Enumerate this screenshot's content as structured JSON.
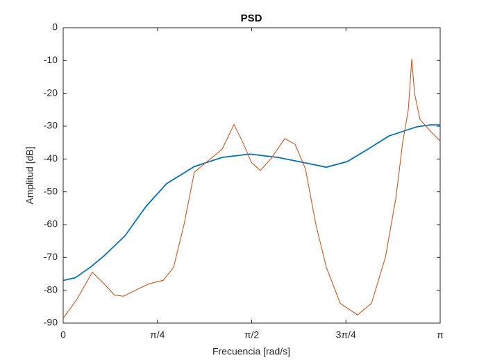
{
  "chart_data": {
    "type": "line",
    "title": "PSD",
    "x_label": "Frecuencia [rad/s]",
    "y_label": "Amplitud [dB]",
    "xlim": [
      0,
      3.14159
    ],
    "xticks": [
      0,
      {
        "value": 0.7854,
        "label": "π/4"
      },
      {
        "value": 1.5708,
        "label": "π/2"
      },
      {
        "value": 2.35619,
        "label": "3π/4"
      },
      {
        "value": 3.14159,
        "label": "π"
      }
    ],
    "ylim": [
      -90,
      0
    ],
    "yticks": [
      0,
      -10,
      -20,
      -30,
      -40,
      -50,
      -60,
      -70,
      -80,
      -90
    ],
    "grid": false,
    "series": [
      {
        "color": "#0072bd",
        "x": [
          0,
          0.1,
          0.226,
          0.341,
          0.515,
          0.689,
          0.862,
          1.093,
          1.325,
          1.556,
          1.788,
          2.019,
          2.193,
          2.366,
          2.54,
          2.714,
          2.945,
          3.06,
          3.14159
        ],
        "values": [
          -77,
          -76.2,
          -73,
          -69.5,
          -63.4,
          -54.5,
          -47.5,
          -42.3,
          -39.5,
          -38.5,
          -39.5,
          -41.2,
          -42.5,
          -40.8,
          -37,
          -33,
          -30.2,
          -29.6,
          -29.6
        ]
      },
      {
        "color": "#d95319",
        "x": [
          0,
          0.11,
          0.243,
          0.341,
          0.428,
          0.503,
          0.602,
          0.717,
          0.833,
          0.92,
          1.007,
          1.093,
          1.209,
          1.325,
          1.423,
          1.498,
          1.568,
          1.643,
          1.73,
          1.846,
          1.932,
          2.019,
          2.106,
          2.193,
          2.309,
          2.453,
          2.569,
          2.685,
          2.772,
          2.829,
          2.876,
          2.905,
          2.928,
          2.974,
          3.06,
          3.14159
        ],
        "values": [
          -88.5,
          -83,
          -74.5,
          -78,
          -81.5,
          -81.8,
          -80,
          -78,
          -77,
          -73,
          -60,
          -44,
          -40.5,
          -37,
          -29.5,
          -35,
          -41,
          -43.5,
          -40,
          -33.8,
          -35.5,
          -43,
          -60,
          -73,
          -84,
          -87.5,
          -84,
          -70,
          -52,
          -35,
          -25,
          -9.5,
          -20,
          -28,
          -31.5,
          -34.5
        ]
      }
    ]
  }
}
